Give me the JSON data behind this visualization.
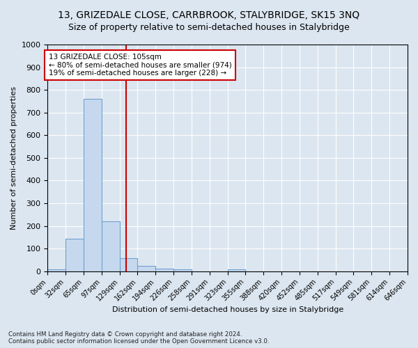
{
  "title": "13, GRIZEDALE CLOSE, CARRBROOK, STALYBRIDGE, SK15 3NQ",
  "subtitle": "Size of property relative to semi-detached houses in Stalybridge",
  "xlabel": "Distribution of semi-detached houses by size in Stalybridge",
  "ylabel": "Number of semi-detached properties",
  "footer_line1": "Contains HM Land Registry data © Crown copyright and database right 2024.",
  "footer_line2": "Contains public sector information licensed under the Open Government Licence v3.0.",
  "bin_labels": [
    "0sqm",
    "32sqm",
    "65sqm",
    "97sqm",
    "129sqm",
    "162sqm",
    "194sqm",
    "226sqm",
    "258sqm",
    "291sqm",
    "323sqm",
    "355sqm",
    "388sqm",
    "420sqm",
    "452sqm",
    "485sqm",
    "517sqm",
    "549sqm",
    "581sqm",
    "614sqm",
    "646sqm"
  ],
  "bar_values": [
    8,
    145,
    760,
    220,
    57,
    25,
    12,
    10,
    0,
    0,
    10,
    0,
    0,
    0,
    0,
    0,
    0,
    0,
    0,
    0
  ],
  "bar_color": "#c5d8ee",
  "bar_edge_color": "#6699cc",
  "vline_bin": 3,
  "vline_color": "#cc0000",
  "annotation_text": "13 GRIZEDALE CLOSE: 105sqm\n← 80% of semi-detached houses are smaller (974)\n19% of semi-detached houses are larger (228) →",
  "annotation_box_color": "#ffffff",
  "annotation_box_edge": "#cc0000",
  "ylim": [
    0,
    1000
  ],
  "yticks": [
    0,
    100,
    200,
    300,
    400,
    500,
    600,
    700,
    800,
    900,
    1000
  ],
  "background_color": "#dce6f0",
  "plot_bg_color": "#dce6f0",
  "title_fontsize": 10,
  "subtitle_fontsize": 9,
  "xlabel_fontsize": 8,
  "ylabel_fontsize": 8
}
